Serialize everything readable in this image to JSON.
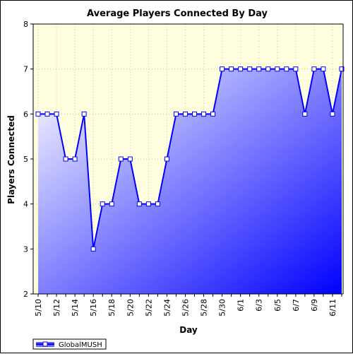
{
  "chart_data": {
    "type": "area",
    "title": "Average Players Connected By Day",
    "xlabel": "Day",
    "ylabel": "Players Connected",
    "ylim": [
      2,
      8
    ],
    "yticks": [
      2,
      3,
      4,
      5,
      6,
      7,
      8
    ],
    "x": [
      "5/10",
      "5/11",
      "5/12",
      "5/13",
      "5/14",
      "5/15",
      "5/16",
      "5/17",
      "5/18",
      "5/19",
      "5/20",
      "5/21",
      "5/22",
      "5/23",
      "5/24",
      "5/25",
      "5/26",
      "5/27",
      "5/28",
      "5/29",
      "5/30",
      "5/31",
      "6/1",
      "6/2",
      "6/3",
      "6/4",
      "6/5",
      "6/6",
      "6/7",
      "6/8",
      "6/9",
      "6/10",
      "6/11",
      "6/12"
    ],
    "xtick_labels": [
      "5/10",
      "5/12",
      "5/14",
      "5/16",
      "5/18",
      "5/20",
      "5/22",
      "5/24",
      "5/26",
      "5/28",
      "5/30",
      "6/1",
      "6/3",
      "6/5",
      "6/7",
      "6/9",
      "6/11"
    ],
    "series": [
      {
        "name": "GlobalMUSH",
        "values": [
          6,
          6,
          6,
          5,
          5,
          6,
          3,
          4,
          4,
          5,
          5,
          4,
          4,
          4,
          5,
          6,
          6,
          6,
          6,
          6,
          7,
          7,
          7,
          7,
          7,
          7,
          7,
          7,
          7,
          6,
          7,
          7,
          6,
          7
        ]
      }
    ],
    "grid": true,
    "legend": "bottom-left",
    "colors": {
      "line": "#0000ff",
      "fill_light": "#ffffff",
      "fill_dark": "#0000ff",
      "plot_bg": "#ffffe0",
      "grid": "#c8c8a0"
    }
  }
}
